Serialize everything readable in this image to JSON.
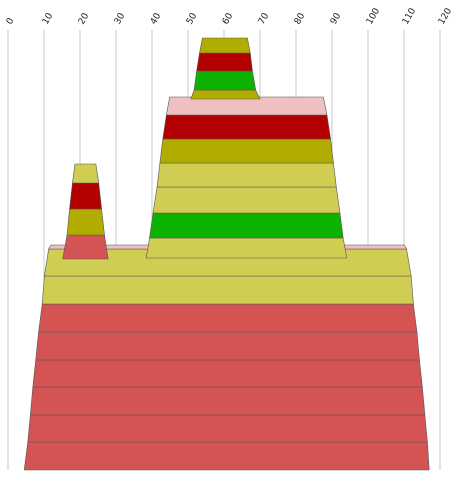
{
  "chart_data": {
    "type": "area",
    "x_axis": {
      "ticks": [
        0,
        10,
        20,
        30,
        40,
        50,
        60,
        70,
        80,
        90,
        100,
        110,
        120
      ],
      "tick_labels": [
        "0",
        "10",
        "20",
        "30",
        "40",
        "50",
        "60",
        "70",
        "80",
        "90",
        "100",
        "110",
        "120"
      ],
      "position": "top",
      "label_rotation_deg": -60,
      "range": [
        0,
        120
      ]
    },
    "grid": {
      "vertical": true,
      "horizontal": false
    },
    "legend": "none",
    "stacks": [
      {
        "name": "",
        "layers": [
          {
            "bottom": [
              4.5,
              117
            ],
            "top": [
              5.5,
              116.5
            ],
            "color": "#d45454"
          },
          {
            "bottom": [
              5.5,
              116.5
            ],
            "top": [
              6.2,
              115.8
            ],
            "color": "#d45454"
          },
          {
            "bottom": [
              6.2,
              115.8
            ],
            "top": [
              6.9,
              115.1
            ],
            "color": "#d45454"
          },
          {
            "bottom": [
              6.9,
              115.1
            ],
            "top": [
              7.7,
              114.3
            ],
            "color": "#d45454"
          },
          {
            "bottom": [
              7.7,
              114.3
            ],
            "top": [
              8.5,
              113.6
            ],
            "color": "#d45454"
          },
          {
            "bottom": [
              8.5,
              113.6
            ],
            "top": [
              9.5,
              112.6
            ],
            "color": "#d45454"
          },
          {
            "bottom": [
              9.5,
              112.6
            ],
            "top": [
              10.1,
              112.0
            ],
            "color": "#cfcd52"
          },
          {
            "bottom": [
              10.1,
              112.0
            ],
            "top": [
              11.3,
              110.7
            ],
            "color": "#cfcd52"
          },
          {
            "bottom": [
              11.3,
              110.7
            ],
            "top": [
              11.9,
              110.1
            ],
            "color": "#f0c0c0"
          }
        ]
      },
      {
        "name": "",
        "layers": [
          {
            "bottom": [
              15.2,
              27.8
            ],
            "top": [
              16.4,
              26.8
            ],
            "color": "#d45454"
          },
          {
            "bottom": [
              16.4,
              26.8
            ],
            "top": [
              17.1,
              26.0
            ],
            "color": "#b1ad00"
          },
          {
            "bottom": [
              17.1,
              26.0
            ],
            "top": [
              17.9,
              25.2
            ],
            "color": "#b30000"
          },
          {
            "bottom": [
              17.9,
              25.2
            ],
            "top": [
              18.6,
              24.4
            ],
            "color": "#cfcd52"
          }
        ]
      },
      {
        "name": "",
        "layers": [
          {
            "bottom": [
              38.4,
              94.1
            ],
            "top": [
              39.3,
              93.1
            ],
            "color": "#cfcd52"
          },
          {
            "bottom": [
              39.3,
              93.1
            ],
            "top": [
              40.3,
              92.2
            ],
            "color": "#0db100"
          },
          {
            "bottom": [
              40.3,
              92.2
            ],
            "top": [
              41.4,
              91.2
            ],
            "color": "#cfcd52"
          },
          {
            "bottom": [
              41.4,
              91.2
            ],
            "top": [
              42.2,
              90.4
            ],
            "color": "#cfcd52"
          },
          {
            "bottom": [
              42.2,
              90.4
            ],
            "top": [
              43.0,
              89.6
            ],
            "color": "#b1ad00"
          },
          {
            "bottom": [
              43.0,
              89.6
            ],
            "top": [
              44.0,
              88.6
            ],
            "color": "#b30000"
          },
          {
            "bottom": [
              44.0,
              88.6
            ],
            "top": [
              44.9,
              87.6
            ],
            "color": "#f0c0c0"
          }
        ]
      },
      {
        "name": "",
        "layers": [
          {
            "bottom": [
              50.8,
              70.0
            ],
            "top": [
              51.7,
              68.8
            ],
            "color": "#b1ad00"
          },
          {
            "bottom": [
              51.7,
              68.8
            ],
            "top": [
              52.4,
              67.9
            ],
            "color": "#0db100"
          },
          {
            "bottom": [
              52.4,
              67.9
            ],
            "top": [
              53.2,
              67.3
            ],
            "color": "#b30000"
          },
          {
            "bottom": [
              53.2,
              67.3
            ],
            "top": [
              54.0,
              66.5
            ],
            "color": "#b1ad00"
          }
        ]
      }
    ]
  }
}
